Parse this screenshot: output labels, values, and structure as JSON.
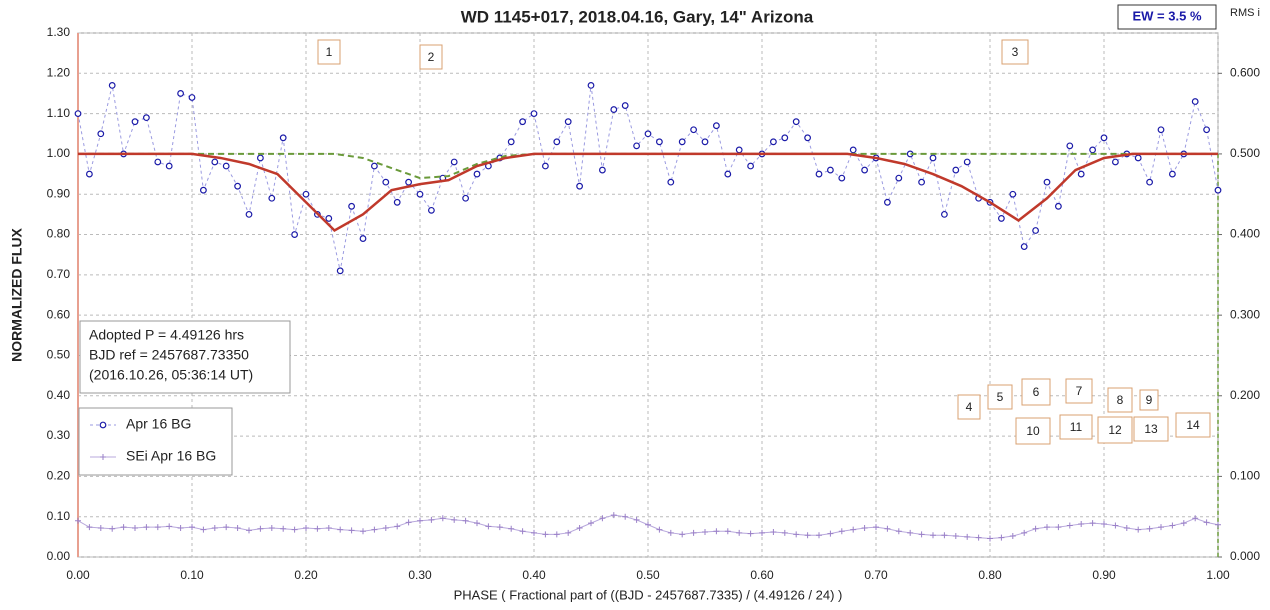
{
  "chart_data": {
    "type": "scatter",
    "title": "WD 1145+017, 2018.04.16, Gary,  14\" Arizona",
    "ew_label": "EW =  3.5 %",
    "y2_label": "RMS i",
    "x_label": "PHASE  ( Fractional part of ((BJD - 2457687.7335)  / (4.49126  / 24) )",
    "y_label": "NORMALIZED  FLUX",
    "info_lines": [
      "Adopted P = 4.49126 hrs",
      "BJD ref = 2457687.73350",
      "(2016.10.26, 05:36:14 UT)"
    ],
    "annotations": [
      "1",
      "2",
      "3",
      "4",
      "5",
      "6",
      "7",
      "8",
      "9",
      "10",
      "11",
      "12",
      "13",
      "14"
    ],
    "grid": true,
    "xlim": [
      0,
      1
    ],
    "ylim": [
      0,
      1.3
    ],
    "y2lim": [
      0,
      0.65
    ],
    "xticks": [
      {
        "value": 0,
        "label": "0.00"
      },
      {
        "value": 0.1,
        "label": "0.10"
      },
      {
        "value": 0.2,
        "label": "0.20"
      },
      {
        "value": 0.3,
        "label": "0.30"
      },
      {
        "value": 0.4,
        "label": "0.40"
      },
      {
        "value": 0.5,
        "label": "0.50"
      },
      {
        "value": 0.6,
        "label": "0.60"
      },
      {
        "value": 0.7,
        "label": "0.70"
      },
      {
        "value": 0.8,
        "label": "0.80"
      },
      {
        "value": 0.9,
        "label": "0.90"
      },
      {
        "value": 1,
        "label": "1.00"
      }
    ],
    "yticks": [
      {
        "value": 0,
        "label": "0.00"
      },
      {
        "value": 0.1,
        "label": "0.10"
      },
      {
        "value": 0.2,
        "label": "0.20"
      },
      {
        "value": 0.3,
        "label": "0.30"
      },
      {
        "value": 0.4,
        "label": "0.40"
      },
      {
        "value": 0.5,
        "label": "0.50"
      },
      {
        "value": 0.6,
        "label": "0.60"
      },
      {
        "value": 0.7,
        "label": "0.70"
      },
      {
        "value": 0.8,
        "label": "0.80"
      },
      {
        "value": 0.9,
        "label": "0.90"
      },
      {
        "value": 1,
        "label": "1.00"
      },
      {
        "value": 1.1,
        "label": "1.10"
      },
      {
        "value": 1.2,
        "label": "1.20"
      },
      {
        "value": 1.3,
        "label": "1.30"
      }
    ],
    "y2ticks": [
      {
        "value": 0,
        "label": "0.000"
      },
      {
        "value": 0.1,
        "label": "0.100"
      },
      {
        "value": 0.2,
        "label": "0.200"
      },
      {
        "value": 0.3,
        "label": "0.300"
      },
      {
        "value": 0.4,
        "label": "0.400"
      },
      {
        "value": 0.5,
        "label": "0.500"
      },
      {
        "value": 0.6,
        "label": "0.600"
      }
    ],
    "series": [
      {
        "name": "Apr 16 BG",
        "color": "#1a1aa8",
        "line_color": "#9a9ae0",
        "marker": "circle",
        "dash": "3,3",
        "x": [
          0,
          0.01,
          0.02,
          0.03,
          0.04,
          0.05,
          0.06,
          0.07,
          0.08,
          0.09,
          0.1,
          0.11,
          0.12,
          0.13,
          0.14,
          0.15,
          0.16,
          0.17,
          0.18,
          0.19,
          0.2,
          0.21,
          0.22,
          0.23,
          0.24,
          0.25,
          0.26,
          0.27,
          0.28,
          0.29,
          0.3,
          0.31,
          0.32,
          0.33,
          0.34,
          0.35,
          0.36,
          0.37,
          0.38,
          0.39,
          0.4,
          0.41,
          0.42,
          0.43,
          0.44,
          0.45,
          0.46,
          0.47,
          0.48,
          0.49,
          0.5,
          0.51,
          0.52,
          0.53,
          0.54,
          0.55,
          0.56,
          0.57,
          0.58,
          0.59,
          0.6,
          0.61,
          0.62,
          0.63,
          0.64,
          0.65,
          0.66,
          0.67,
          0.68,
          0.69,
          0.7,
          0.71,
          0.72,
          0.73,
          0.74,
          0.75,
          0.76,
          0.77,
          0.78,
          0.79,
          0.8,
          0.81,
          0.82,
          0.83,
          0.84,
          0.85,
          0.86,
          0.87,
          0.88,
          0.89,
          0.9,
          0.91,
          0.92,
          0.93,
          0.94,
          0.95,
          0.96,
          0.97,
          0.98,
          0.99,
          1
        ],
        "values": [
          1.1,
          0.95,
          1.05,
          1.17,
          1.0,
          1.08,
          1.09,
          0.98,
          0.97,
          1.15,
          1.14,
          0.91,
          0.98,
          0.97,
          0.92,
          0.85,
          0.99,
          0.89,
          1.04,
          0.8,
          0.9,
          0.85,
          0.84,
          0.71,
          0.87,
          0.79,
          0.97,
          0.93,
          0.88,
          0.93,
          0.9,
          0.86,
          0.94,
          0.98,
          0.89,
          0.95,
          0.97,
          0.99,
          1.03,
          1.08,
          1.1,
          0.97,
          1.03,
          1.08,
          0.92,
          1.17,
          0.96,
          1.11,
          1.12,
          1.02,
          1.05,
          1.03,
          0.93,
          1.03,
          1.06,
          1.03,
          1.07,
          0.95,
          1.01,
          0.97,
          1.0,
          1.03,
          1.04,
          1.08,
          1.04,
          0.95,
          0.96,
          0.94,
          1.01,
          0.96,
          0.99,
          0.88,
          0.94,
          1.0,
          0.93,
          0.99,
          0.85,
          0.96,
          0.98,
          0.89,
          0.88,
          0.84,
          0.9,
          0.77,
          0.81,
          0.93,
          0.87,
          1.02,
          0.95,
          1.01,
          1.04,
          0.98,
          1.0,
          0.99,
          0.93,
          1.06,
          0.95,
          1.0,
          1.13,
          1.06,
          0.91
        ]
      },
      {
        "name": "SEi Apr 16 BG",
        "color": "#9a80c8",
        "line_color": "#b8a8dc",
        "marker": "plus",
        "dash": "none",
        "axis": "y2",
        "x": [
          0,
          0.01,
          0.02,
          0.03,
          0.04,
          0.05,
          0.06,
          0.07,
          0.08,
          0.09,
          0.1,
          0.11,
          0.12,
          0.13,
          0.14,
          0.15,
          0.16,
          0.17,
          0.18,
          0.19,
          0.2,
          0.21,
          0.22,
          0.23,
          0.24,
          0.25,
          0.26,
          0.27,
          0.28,
          0.29,
          0.3,
          0.31,
          0.32,
          0.33,
          0.34,
          0.35,
          0.36,
          0.37,
          0.38,
          0.39,
          0.4,
          0.41,
          0.42,
          0.43,
          0.44,
          0.45,
          0.46,
          0.47,
          0.48,
          0.49,
          0.5,
          0.51,
          0.52,
          0.53,
          0.54,
          0.55,
          0.56,
          0.57,
          0.58,
          0.59,
          0.6,
          0.61,
          0.62,
          0.63,
          0.64,
          0.65,
          0.66,
          0.67,
          0.68,
          0.69,
          0.7,
          0.71,
          0.72,
          0.73,
          0.74,
          0.75,
          0.76,
          0.77,
          0.78,
          0.79,
          0.8,
          0.81,
          0.82,
          0.83,
          0.84,
          0.85,
          0.86,
          0.87,
          0.88,
          0.89,
          0.9,
          0.91,
          0.92,
          0.93,
          0.94,
          0.95,
          0.96,
          0.97,
          0.98,
          0.99,
          1
        ],
        "values": [
          0.045,
          0.037,
          0.036,
          0.035,
          0.037,
          0.036,
          0.037,
          0.037,
          0.038,
          0.036,
          0.037,
          0.034,
          0.036,
          0.037,
          0.036,
          0.033,
          0.035,
          0.036,
          0.035,
          0.034,
          0.036,
          0.035,
          0.036,
          0.034,
          0.033,
          0.032,
          0.034,
          0.036,
          0.038,
          0.043,
          0.045,
          0.046,
          0.048,
          0.046,
          0.045,
          0.042,
          0.038,
          0.037,
          0.035,
          0.032,
          0.03,
          0.028,
          0.028,
          0.03,
          0.036,
          0.042,
          0.048,
          0.052,
          0.05,
          0.046,
          0.04,
          0.034,
          0.03,
          0.028,
          0.03,
          0.031,
          0.032,
          0.032,
          0.03,
          0.029,
          0.03,
          0.031,
          0.03,
          0.028,
          0.027,
          0.027,
          0.029,
          0.032,
          0.034,
          0.036,
          0.037,
          0.035,
          0.032,
          0.03,
          0.028,
          0.027,
          0.027,
          0.026,
          0.025,
          0.024,
          0.023,
          0.024,
          0.026,
          0.03,
          0.035,
          0.037,
          0.037,
          0.039,
          0.041,
          0.042,
          0.041,
          0.039,
          0.036,
          0.034,
          0.035,
          0.037,
          0.039,
          0.042,
          0.048,
          0.043,
          0.04
        ]
      },
      {
        "color": "#6a9a3a",
        "marker": "none",
        "dash": "6,4",
        "width": 2,
        "x": [
          0,
          0.025,
          0.05,
          0.075,
          0.1,
          0.125,
          0.15,
          0.175,
          0.2,
          0.225,
          0.25,
          0.275,
          0.3,
          0.325,
          0.35,
          0.375,
          0.4,
          0.425,
          0.45,
          0.475,
          0.5,
          0.525,
          0.55,
          0.575,
          0.6,
          0.625,
          0.65,
          0.675,
          0.7,
          0.725,
          0.75,
          0.775,
          0.8,
          0.825,
          0.85,
          0.875,
          0.9,
          0.925,
          0.95,
          0.975,
          1
        ],
        "values": [
          1,
          1,
          1,
          1,
          1,
          1,
          1,
          1,
          1,
          1,
          0.99,
          0.965,
          0.94,
          0.945,
          0.975,
          0.995,
          1,
          1,
          1,
          1,
          1,
          1,
          1,
          1,
          1,
          1,
          1,
          1,
          1,
          1,
          1,
          1,
          1,
          1,
          1,
          1,
          1,
          1,
          1,
          1,
          1
        ]
      },
      {
        "color": "#c0392b",
        "marker": "none",
        "dash": "none",
        "width": 2.5,
        "x": [
          0,
          0.025,
          0.05,
          0.075,
          0.1,
          0.125,
          0.15,
          0.175,
          0.2,
          0.225,
          0.25,
          0.275,
          0.3,
          0.325,
          0.35,
          0.375,
          0.4,
          0.425,
          0.45,
          0.475,
          0.5,
          0.525,
          0.55,
          0.575,
          0.6,
          0.625,
          0.65,
          0.675,
          0.7,
          0.725,
          0.75,
          0.775,
          0.8,
          0.825,
          0.85,
          0.875,
          0.9,
          0.925,
          0.95,
          0.975,
          1
        ],
        "values": [
          1,
          1,
          1,
          1,
          1,
          0.99,
          0.975,
          0.95,
          0.88,
          0.81,
          0.85,
          0.91,
          0.925,
          0.935,
          0.97,
          0.99,
          1,
          1,
          1,
          1,
          1,
          1,
          1,
          1,
          1,
          1,
          1,
          1,
          0.99,
          0.975,
          0.95,
          0.92,
          0.88,
          0.835,
          0.89,
          0.96,
          0.99,
          1,
          1,
          1,
          1
        ]
      }
    ]
  }
}
